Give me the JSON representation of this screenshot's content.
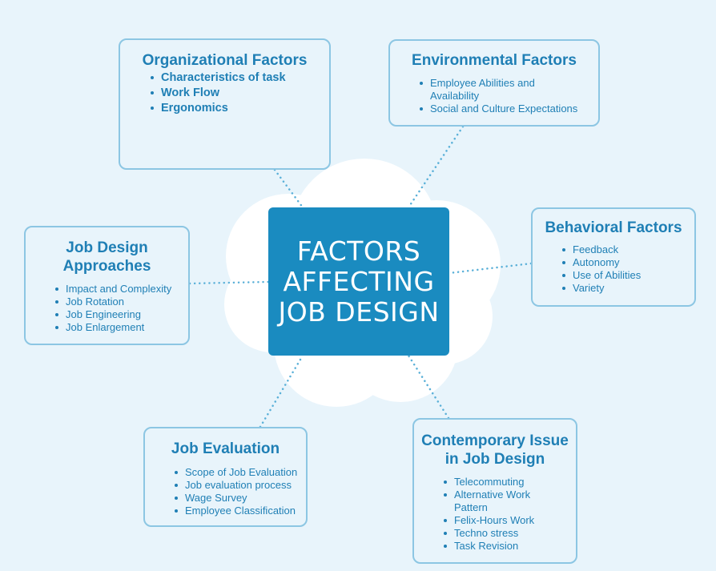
{
  "center": {
    "title": "FACTORS AFFECTING JOB DESIGN"
  },
  "colors": {
    "background": "#e8f4fb",
    "accent": "#1a8bc0",
    "text": "#1f7fb5",
    "border": "#8cc6e3",
    "cloud": "#ffffff"
  },
  "cards": {
    "organizational": {
      "title": "Organizational Factors",
      "items": [
        "Characteristics of task",
        "Work Flow",
        "Ergonomics"
      ]
    },
    "environmental": {
      "title": "Environmental Factors",
      "items": [
        "Employee Abilities and Availability",
        "Social and Culture Expectations"
      ]
    },
    "behavioral": {
      "title": "Behavioral Factors",
      "items": [
        "Feedback",
        "Autonomy",
        "Use of Abilities",
        "Variety"
      ]
    },
    "approaches": {
      "title": "Job Design Approaches",
      "items": [
        "Impact and Complexity",
        "Job Rotation",
        "Job Engineering",
        "Job Enlargement"
      ]
    },
    "evaluation": {
      "title": "Job Evaluation",
      "items": [
        "Scope of Job Evaluation",
        "Job evaluation process",
        "Wage Survey",
        "Employee Classification"
      ]
    },
    "contemporary": {
      "title": "Contemporary Issue in Job Design",
      "items": [
        "Telecommuting",
        "Alternative Work Pattern",
        "Felix-Hours Work",
        "Techno stress",
        "Task Revision"
      ]
    }
  }
}
